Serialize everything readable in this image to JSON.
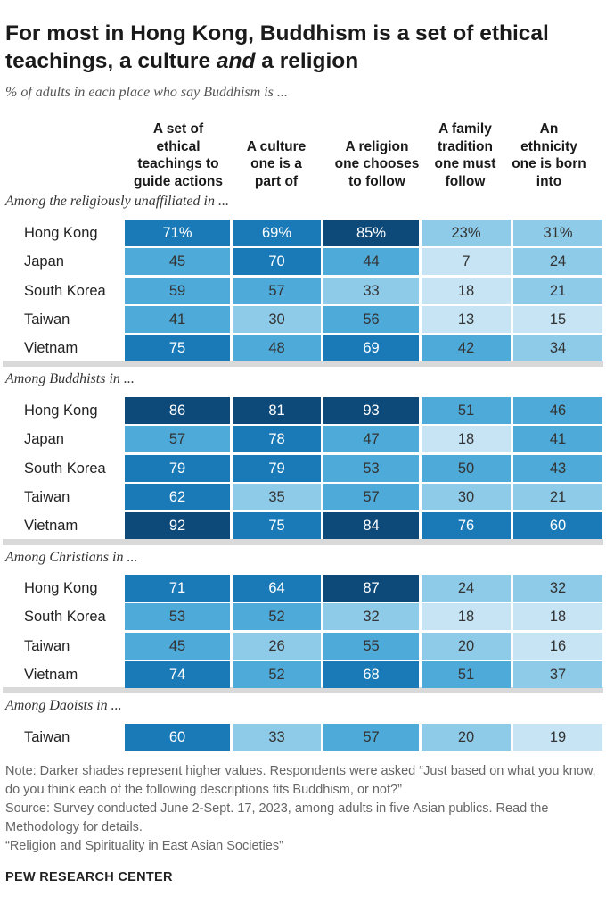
{
  "title": "For most in Hong Kong, Buddhism is a set of ethical teachings, a culture",
  "title_italic": "and",
  "title_end": "a religion",
  "subtitle": "% of adults in each place who say Buddhism is ...",
  "chart_data": {
    "type": "heatmap",
    "columns": [
      "A set of\nethical\nteachings to\nguide actions",
      "A culture\none is a\npart of",
      "A religion\none chooses\nto follow",
      "A family\ntradition\none must\nfollow",
      "An\nethnicity\none is born\ninto"
    ],
    "groups": [
      {
        "label": "Among the religiously unaffiliated in ...",
        "rows": [
          {
            "name": "Hong Kong",
            "values": [
              71,
              69,
              85,
              23,
              31
            ],
            "display": [
              "71%",
              "69%",
              "85%",
              "23%",
              "31%"
            ]
          },
          {
            "name": "Japan",
            "values": [
              45,
              70,
              44,
              7,
              24
            ],
            "display": [
              "45",
              "70",
              "44",
              "7",
              "24"
            ]
          },
          {
            "name": "South Korea",
            "values": [
              59,
              57,
              33,
              18,
              21
            ],
            "display": [
              "59",
              "57",
              "33",
              "18",
              "21"
            ]
          },
          {
            "name": "Taiwan",
            "values": [
              41,
              30,
              56,
              13,
              15
            ],
            "display": [
              "41",
              "30",
              "56",
              "13",
              "15"
            ]
          },
          {
            "name": "Vietnam",
            "values": [
              75,
              48,
              69,
              42,
              34
            ],
            "display": [
              "75",
              "48",
              "69",
              "42",
              "34"
            ]
          }
        ]
      },
      {
        "label": "Among Buddhists in ...",
        "rows": [
          {
            "name": "Hong Kong",
            "values": [
              86,
              81,
              93,
              51,
              46
            ],
            "display": [
              "86",
              "81",
              "93",
              "51",
              "46"
            ]
          },
          {
            "name": "Japan",
            "values": [
              57,
              78,
              47,
              18,
              41
            ],
            "display": [
              "57",
              "78",
              "47",
              "18",
              "41"
            ]
          },
          {
            "name": "South Korea",
            "values": [
              79,
              79,
              53,
              50,
              43
            ],
            "display": [
              "79",
              "79",
              "53",
              "50",
              "43"
            ]
          },
          {
            "name": "Taiwan",
            "values": [
              62,
              35,
              57,
              30,
              21
            ],
            "display": [
              "62",
              "35",
              "57",
              "30",
              "21"
            ]
          },
          {
            "name": "Vietnam",
            "values": [
              92,
              75,
              84,
              76,
              60
            ],
            "display": [
              "92",
              "75",
              "84",
              "76",
              "60"
            ]
          }
        ]
      },
      {
        "label": "Among Christians in ...",
        "rows": [
          {
            "name": "Hong Kong",
            "values": [
              71,
              64,
              87,
              24,
              32
            ],
            "display": [
              "71",
              "64",
              "87",
              "24",
              "32"
            ]
          },
          {
            "name": "South Korea",
            "values": [
              53,
              52,
              32,
              18,
              18
            ],
            "display": [
              "53",
              "52",
              "32",
              "18",
              "18"
            ]
          },
          {
            "name": "Taiwan",
            "values": [
              45,
              26,
              55,
              20,
              16
            ],
            "display": [
              "45",
              "26",
              "55",
              "20",
              "16"
            ]
          },
          {
            "name": "Vietnam",
            "values": [
              74,
              52,
              68,
              51,
              37
            ],
            "display": [
              "74",
              "52",
              "68",
              "51",
              "37"
            ]
          }
        ]
      },
      {
        "label": "Among Daoists in ...",
        "rows": [
          {
            "name": "Taiwan",
            "values": [
              60,
              33,
              57,
              20,
              19
            ],
            "display": [
              "60",
              "33",
              "57",
              "20",
              "19"
            ]
          }
        ]
      }
    ]
  },
  "colors": {
    "darkest": "#0d4a7a",
    "dark": "#1a7ab8",
    "medium": "#4eaad8",
    "light": "#8ecbe8",
    "lightest": "#c6e4f4",
    "text_light": "#ffffff",
    "text_dark": "#333333"
  },
  "notes": [
    "Note: Darker shades represent higher values. Respondents were asked “Just based on what you know, do you think each of the following descriptions fits Buddhism, or not?”",
    "Source: Survey conducted June 2-Sept. 17, 2023, among adults in five Asian publics. Read the Methodology for details.",
    "“Religion and Spirituality in East Asian Societies”"
  ],
  "brand": "PEW RESEARCH CENTER"
}
